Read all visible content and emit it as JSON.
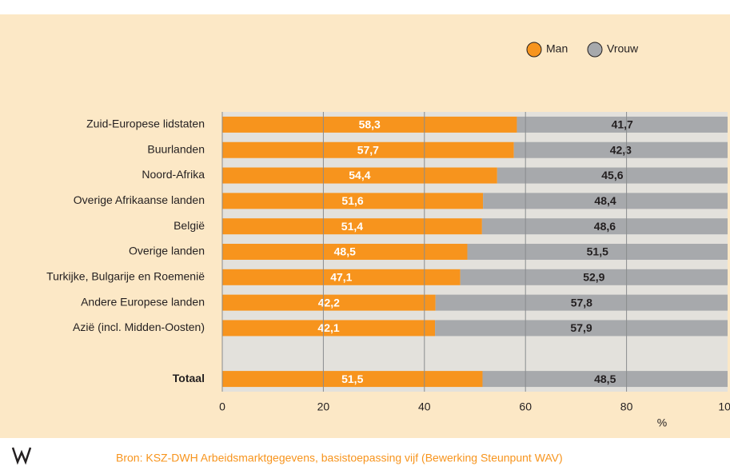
{
  "chart_data": {
    "type": "bar",
    "orientation": "horizontal",
    "stacked": true,
    "categories": [
      "Zuid-Europese lidstaten",
      "Buurlanden",
      "Noord-Afrika",
      "Overige Afrikaanse landen",
      "België",
      "Overige landen",
      "Turkijke, Bulgarije en Roemenië",
      "Andere Europese landen",
      "Azië (incl. Midden-Oosten)",
      null,
      "Totaal"
    ],
    "series": [
      {
        "name": "Man",
        "color": "#f7941d",
        "values": [
          58.3,
          57.7,
          54.4,
          51.6,
          51.4,
          48.5,
          47.1,
          42.2,
          42.1,
          null,
          51.5
        ],
        "value_labels": [
          "58,3",
          "57,7",
          "54,4",
          "51,6",
          "51,4",
          "48,5",
          "47,1",
          "42,2",
          "42,1",
          null,
          "51,5"
        ]
      },
      {
        "name": "Vrouw",
        "color": "#a7a9ac",
        "values": [
          41.7,
          42.3,
          45.6,
          48.4,
          48.6,
          51.5,
          52.9,
          57.8,
          57.9,
          null,
          48.5
        ],
        "value_labels": [
          "41,7",
          "42,3",
          "45,6",
          "48,4",
          "48,6",
          "51,5",
          "52,9",
          "57,8",
          "57,9",
          null,
          "48,5"
        ]
      }
    ],
    "xlim": [
      0,
      100
    ],
    "xticks": [
      0,
      20,
      40,
      60,
      80,
      100
    ],
    "xlabel": "%",
    "grid": true,
    "legend": "top-right",
    "source": "Bron: KSZ-DWH Arbeidsmarktgegevens, basistoepassing vijf (Bewerking Steunpunt WAV)"
  }
}
